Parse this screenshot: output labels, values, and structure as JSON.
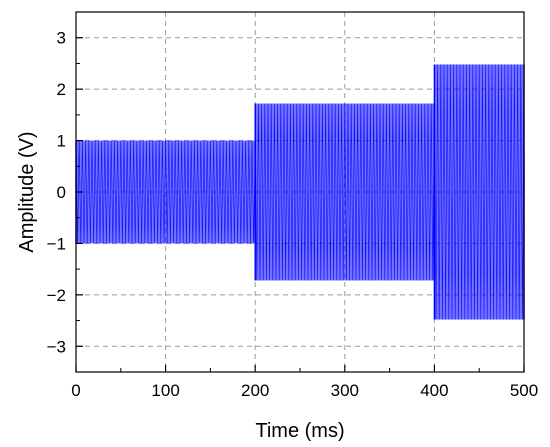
{
  "chart_data": {
    "type": "line",
    "xlabel": "Time (ms)",
    "ylabel": "Amplitude (V)",
    "xlim": [
      0,
      500
    ],
    "ylim": [
      -3.5,
      3.5
    ],
    "x_ticks": [
      0,
      100,
      200,
      300,
      400,
      500
    ],
    "y_ticks": [
      -3,
      -2,
      -1,
      0,
      1,
      2,
      3
    ],
    "x_tick_labels": [
      "0",
      "100",
      "200",
      "300",
      "400",
      "500"
    ],
    "y_tick_labels": [
      "−3",
      "−2",
      "−1",
      "0",
      "1",
      "2",
      "3"
    ],
    "grid": true,
    "grid_style": "dashed",
    "series": [
      {
        "color": "#0000ff",
        "segments": [
          {
            "x_start": 0,
            "x_end": 200,
            "amplitude": 1.0
          },
          {
            "x_start": 200,
            "x_end": 400,
            "amplitude": 1.72
          },
          {
            "x_start": 400,
            "x_end": 500,
            "amplitude": 2.48
          }
        ]
      }
    ]
  }
}
